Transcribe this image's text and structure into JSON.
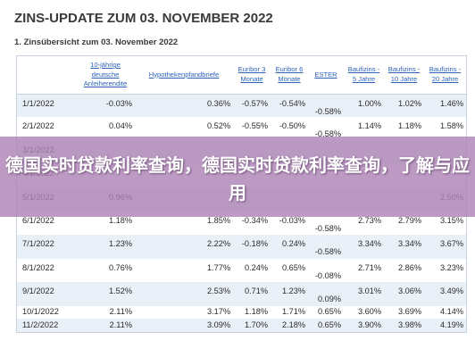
{
  "document": {
    "title": "ZINS-UPDATE ZUM 03. NOVEMBER 2022",
    "subtitle": "1. Zinsübersicht zum 03. November 2022"
  },
  "table": {
    "headers": [
      {
        "key": "date",
        "label": ""
      },
      {
        "key": "bund10",
        "label": "10-jährige deutsche Anleiherendite"
      },
      {
        "key": "pfand",
        "label": "Hypothekenpfandbriefe"
      },
      {
        "key": "euribor3",
        "label": "Euribor 3 Monate"
      },
      {
        "key": "euribor6",
        "label": "Euribor 6 Monate"
      },
      {
        "key": "ester",
        "label": "ESTER"
      },
      {
        "key": "bz5",
        "label": "Baufizins - 5 Jahre"
      },
      {
        "key": "bz10",
        "label": "Baufizins - 10 Jahre"
      },
      {
        "key": "bz20",
        "label": "Baufizins - 20 Jahre"
      }
    ],
    "rows": [
      {
        "date": "1/1/2022",
        "bund10": "-0.03%",
        "pfand": "0.36%",
        "euribor3": "-0.57%",
        "euribor6": "-0.54%",
        "ester": "-0.58%",
        "bz5": "1.00%",
        "bz10": "1.02%",
        "bz20": "1.46%"
      },
      {
        "date": "2/1/2022",
        "bund10": "0.04%",
        "pfand": "0.52%",
        "euribor3": "-0.55%",
        "euribor6": "-0.50%",
        "ester": "-0.58%",
        "bz5": "1.14%",
        "bz10": "1.18%",
        "bz20": "1.58%"
      },
      {
        "date": "3/1/2022",
        "bund10": "",
        "pfand": "",
        "euribor3": "",
        "euribor6": "",
        "ester": "",
        "bz5": "",
        "bz10": "",
        "bz20": ""
      },
      {
        "date": "4/1/2022",
        "bund10": "",
        "pfand": "",
        "euribor3": "",
        "euribor6": "",
        "ester": "",
        "bz5": "",
        "bz10": "",
        "bz20": ""
      },
      {
        "date": "5/1/2022",
        "bund10": "0.96%",
        "pfand": "",
        "euribor3": "",
        "euribor6": "",
        "ester": "",
        "bz5": "",
        "bz10": "",
        "bz20": "2.50%"
      },
      {
        "date": "6/1/2022",
        "bund10": "1.18%",
        "pfand": "1.85%",
        "euribor3": "-0.34%",
        "euribor6": "-0.03%",
        "ester": "-0.58%",
        "bz5": "2.73%",
        "bz10": "2.79%",
        "bz20": "3.15%"
      },
      {
        "date": "7/1/2022",
        "bund10": "1.23%",
        "pfand": "2.22%",
        "euribor3": "-0.18%",
        "euribor6": "0.24%",
        "ester": "-0.58%",
        "bz5": "3.34%",
        "bz10": "3.34%",
        "bz20": "3.67%"
      },
      {
        "date": "8/1/2022",
        "bund10": "0.76%",
        "pfand": "1.77%",
        "euribor3": "0.24%",
        "euribor6": "0.65%",
        "ester": "-0.08%",
        "bz5": "2.71%",
        "bz10": "2.86%",
        "bz20": "3.23%"
      },
      {
        "date": "9/1/2022",
        "bund10": "1.52%",
        "pfand": "2.53%",
        "euribor3": "0.71%",
        "euribor6": "1.23%",
        "ester": "0.09%",
        "bz5": "3.01%",
        "bz10": "3.06%",
        "bz20": "3.49%"
      },
      {
        "date": "10/1/2022",
        "bund10": "2.11%",
        "pfand": "3.17%",
        "euribor3": "1.18%",
        "euribor6": "1.71%",
        "ester": "0.65%",
        "bz5": "3.60%",
        "bz10": "3.69%",
        "bz20": "4.14%"
      },
      {
        "date": "11/2/2022",
        "bund10": "2.11%",
        "pfand": "3.09%",
        "euribor3": "1.70%",
        "euribor6": "2.18%",
        "ester": "0.65%",
        "bz5": "3.90%",
        "bz10": "3.98%",
        "bz20": "4.19%"
      }
    ]
  },
  "banner": {
    "text": "德国实时贷款利率查询，德国实时贷款利率查询，了解与应用",
    "color": "#ae84b6"
  }
}
